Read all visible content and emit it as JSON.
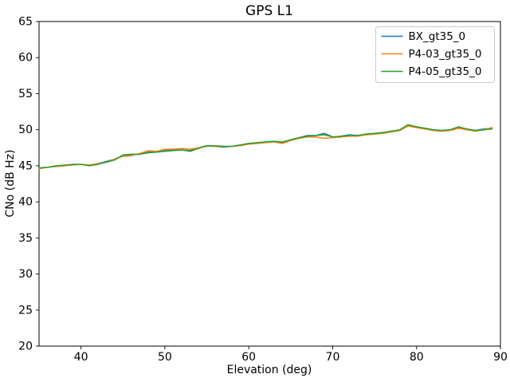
{
  "chart_data": {
    "type": "line",
    "title": "GPS L1",
    "xlabel": "Elevation (deg)",
    "ylabel": "CNo (dB Hz)",
    "xlim": [
      35,
      90
    ],
    "ylim": [
      20,
      65
    ],
    "xticks": [
      40,
      50,
      60,
      70,
      80,
      90
    ],
    "yticks": [
      20,
      25,
      30,
      35,
      40,
      45,
      50,
      55,
      60,
      65
    ],
    "grid": false,
    "legend_position": "upper right",
    "x": [
      35,
      36,
      37,
      38,
      39,
      40,
      41,
      42,
      43,
      44,
      45,
      46,
      47,
      48,
      49,
      50,
      51,
      52,
      53,
      54,
      55,
      56,
      57,
      58,
      59,
      60,
      61,
      62,
      63,
      64,
      65,
      66,
      67,
      68,
      69,
      70,
      71,
      72,
      73,
      74,
      75,
      76,
      77,
      78,
      79,
      80,
      81,
      82,
      83,
      84,
      85,
      86,
      87,
      88,
      89
    ],
    "series": [
      {
        "name": "BX_gt35_0",
        "color": "#1f77b4",
        "values": [
          44.7,
          44.8,
          44.9,
          45.0,
          45.2,
          45.2,
          45.1,
          45.3,
          45.6,
          45.9,
          46.4,
          46.5,
          46.6,
          46.9,
          46.9,
          47.1,
          47.2,
          47.2,
          47.1,
          47.5,
          47.8,
          47.8,
          47.7,
          47.7,
          47.9,
          48.1,
          48.2,
          48.3,
          48.4,
          48.2,
          48.6,
          48.9,
          49.2,
          49.2,
          49.5,
          49.0,
          49.1,
          49.3,
          49.2,
          49.4,
          49.5,
          49.6,
          49.8,
          49.9,
          50.6,
          50.4,
          50.2,
          50.0,
          49.9,
          50.0,
          50.3,
          50.1,
          49.9,
          50.1,
          50.2
        ]
      },
      {
        "name": "P4-03_gt35_0",
        "color": "#ff7f0e",
        "values": [
          44.6,
          44.8,
          44.9,
          45.0,
          45.1,
          45.2,
          45.1,
          45.3,
          45.5,
          45.9,
          46.3,
          46.4,
          46.7,
          47.1,
          47.0,
          47.3,
          47.3,
          47.4,
          47.3,
          47.5,
          47.7,
          47.8,
          47.6,
          47.7,
          47.8,
          48.0,
          48.1,
          48.2,
          48.3,
          48.1,
          48.5,
          48.8,
          49.0,
          49.0,
          48.8,
          48.9,
          49.0,
          49.1,
          49.1,
          49.3,
          49.4,
          49.5,
          49.7,
          49.9,
          50.5,
          50.3,
          50.1,
          49.9,
          49.8,
          49.9,
          50.2,
          50.0,
          49.8,
          50.0,
          50.3
        ]
      },
      {
        "name": "P4-05_gt35_0",
        "color": "#2ca02c",
        "values": [
          44.7,
          44.8,
          45.0,
          45.1,
          45.2,
          45.2,
          45.0,
          45.2,
          45.5,
          45.8,
          46.5,
          46.6,
          46.6,
          46.8,
          46.9,
          47.0,
          47.1,
          47.2,
          47.0,
          47.4,
          47.8,
          47.7,
          47.6,
          47.7,
          47.9,
          48.1,
          48.2,
          48.3,
          48.4,
          48.3,
          48.6,
          48.9,
          49.1,
          49.2,
          49.3,
          49.0,
          49.1,
          49.2,
          49.2,
          49.4,
          49.5,
          49.6,
          49.8,
          50.0,
          50.7,
          50.4,
          50.2,
          50.0,
          49.9,
          50.0,
          50.4,
          50.1,
          49.9,
          50.0,
          50.1
        ]
      }
    ]
  }
}
